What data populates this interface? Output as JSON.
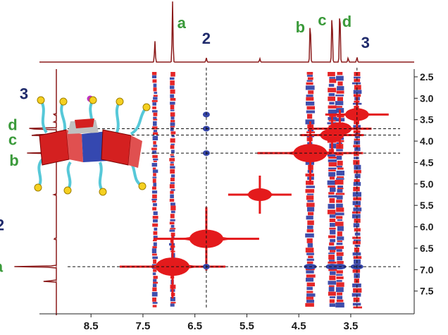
{
  "chart_data": {
    "type": "heatmap",
    "title": "",
    "xlabel": "",
    "ylabel": "",
    "x_axis": {
      "ticks": [
        "8.5",
        "7.5",
        "6.5",
        "5.5",
        "4.5",
        "3.5"
      ],
      "range": [
        8.95,
        2.55
      ],
      "reversed": true
    },
    "y_axis": {
      "ticks": [
        "2.5",
        "3.0",
        "3.5",
        "4.0",
        "4.5",
        "5.0",
        "5.5",
        "6.0",
        "6.5",
        "7.0",
        "7.5"
      ],
      "range": [
        2.32,
        7.9
      ],
      "reversed": true
    },
    "series": [
      {
        "name": "positive contours",
        "color": "#e41a1c"
      },
      {
        "name": "negative contours",
        "color": "#3545a8"
      }
    ],
    "projection_color": "#8b1a1a",
    "peak_labels": [
      {
        "text": "a",
        "ppm": 6.92,
        "color": "#3a9a3a"
      },
      {
        "text": "2",
        "ppm": 6.28,
        "color": "#1f2a6b"
      },
      {
        "text": "b",
        "ppm": 4.28,
        "color": "#3a9a3a"
      },
      {
        "text": "c",
        "ppm": 3.86,
        "color": "#3a9a3a"
      },
      {
        "text": "d",
        "ppm": 3.71,
        "color": "#3a9a3a"
      },
      {
        "text": "3",
        "ppm": 3.38,
        "color": "#1f2a6b"
      }
    ],
    "diagonal_peaks": [
      {
        "ppm": 6.93,
        "label": "a"
      },
      {
        "ppm": 6.28,
        "label": "2"
      },
      {
        "ppm": 5.25,
        "label": ""
      },
      {
        "ppm": 4.28,
        "label": "b"
      },
      {
        "ppm": 3.86,
        "label": "c"
      },
      {
        "ppm": 3.71,
        "label": "d"
      },
      {
        "ppm": 3.38,
        "label": "3"
      }
    ],
    "cross_peaks": [
      {
        "x": 6.28,
        "y": 3.38
      },
      {
        "x": 6.28,
        "y": 3.71
      },
      {
        "x": 6.28,
        "y": 4.28
      },
      {
        "x": 6.28,
        "y": 6.93
      },
      {
        "x": 4.28,
        "y": 6.93
      },
      {
        "x": 3.86,
        "y": 6.93
      },
      {
        "x": 3.71,
        "y": 6.93
      },
      {
        "x": 3.38,
        "y": 6.93
      }
    ],
    "reference_lines": {
      "x": [
        6.28,
        3.38
      ],
      "y": [
        3.71,
        3.86,
        4.28,
        6.93
      ]
    },
    "t1_noise_columns": [
      7.27,
      6.93,
      4.28,
      3.86,
      3.71,
      3.38
    ],
    "grid": false
  }
}
